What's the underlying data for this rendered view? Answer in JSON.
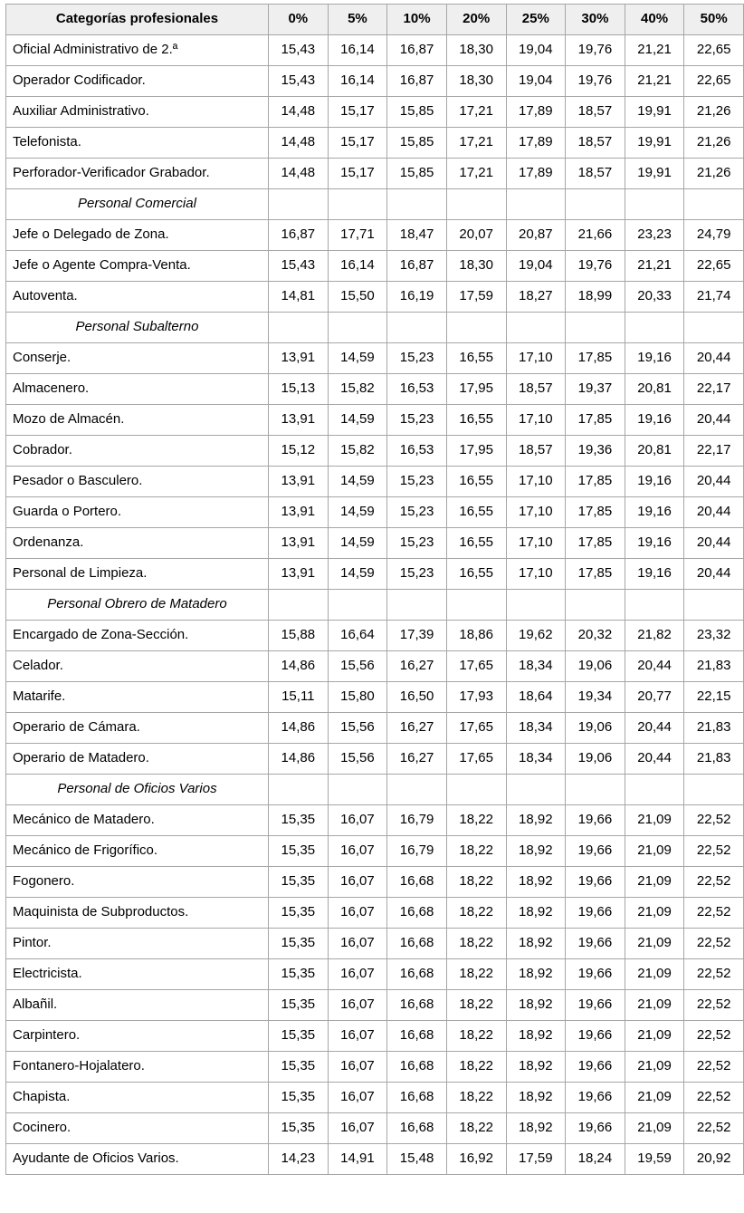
{
  "colors": {
    "header_background": "#efefef",
    "grid_border": "#a6a6a6",
    "text": "#000000",
    "page_background": "#ffffff"
  },
  "table": {
    "category_header": "Categorías profesionales",
    "columns": [
      "0%",
      "5%",
      "10%",
      "20%",
      "25%",
      "30%",
      "40%",
      "50%"
    ],
    "rows": [
      {
        "label": "Oficial Administrativo de 2.ª",
        "values": [
          "15,43",
          "16,14",
          "16,87",
          "18,30",
          "19,04",
          "19,76",
          "21,21",
          "22,65"
        ]
      },
      {
        "label": "Operador Codificador.",
        "values": [
          "15,43",
          "16,14",
          "16,87",
          "18,30",
          "19,04",
          "19,76",
          "21,21",
          "22,65"
        ]
      },
      {
        "label": "Auxiliar Administrativo.",
        "values": [
          "14,48",
          "15,17",
          "15,85",
          "17,21",
          "17,89",
          "18,57",
          "19,91",
          "21,26"
        ]
      },
      {
        "label": "Telefonista.",
        "values": [
          "14,48",
          "15,17",
          "15,85",
          "17,21",
          "17,89",
          "18,57",
          "19,91",
          "21,26"
        ]
      },
      {
        "label": "Perforador-Verificador Grabador.",
        "values": [
          "14,48",
          "15,17",
          "15,85",
          "17,21",
          "17,89",
          "18,57",
          "19,91",
          "21,26"
        ]
      },
      {
        "section": "Personal Comercial"
      },
      {
        "label": "Jefe o Delegado de Zona.",
        "values": [
          "16,87",
          "17,71",
          "18,47",
          "20,07",
          "20,87",
          "21,66",
          "23,23",
          "24,79"
        ]
      },
      {
        "label": "Jefe o Agente Compra-Venta.",
        "values": [
          "15,43",
          "16,14",
          "16,87",
          "18,30",
          "19,04",
          "19,76",
          "21,21",
          "22,65"
        ]
      },
      {
        "label": "Autoventa.",
        "values": [
          "14,81",
          "15,50",
          "16,19",
          "17,59",
          "18,27",
          "18,99",
          "20,33",
          "21,74"
        ]
      },
      {
        "section": "Personal Subalterno"
      },
      {
        "label": "Conserje.",
        "values": [
          "13,91",
          "14,59",
          "15,23",
          "16,55",
          "17,10",
          "17,85",
          "19,16",
          "20,44"
        ]
      },
      {
        "label": "Almacenero.",
        "values": [
          "15,13",
          "15,82",
          "16,53",
          "17,95",
          "18,57",
          "19,37",
          "20,81",
          "22,17"
        ]
      },
      {
        "label": "Mozo de Almacén.",
        "values": [
          "13,91",
          "14,59",
          "15,23",
          "16,55",
          "17,10",
          "17,85",
          "19,16",
          "20,44"
        ]
      },
      {
        "label": "Cobrador.",
        "values": [
          "15,12",
          "15,82",
          "16,53",
          "17,95",
          "18,57",
          "19,36",
          "20,81",
          "22,17"
        ]
      },
      {
        "label": "Pesador o Basculero.",
        "values": [
          "13,91",
          "14,59",
          "15,23",
          "16,55",
          "17,10",
          "17,85",
          "19,16",
          "20,44"
        ]
      },
      {
        "label": "Guarda o Portero.",
        "values": [
          "13,91",
          "14,59",
          "15,23",
          "16,55",
          "17,10",
          "17,85",
          "19,16",
          "20,44"
        ]
      },
      {
        "label": "Ordenanza.",
        "values": [
          "13,91",
          "14,59",
          "15,23",
          "16,55",
          "17,10",
          "17,85",
          "19,16",
          "20,44"
        ]
      },
      {
        "label": "Personal de Limpieza.",
        "values": [
          "13,91",
          "14,59",
          "15,23",
          "16,55",
          "17,10",
          "17,85",
          "19,16",
          "20,44"
        ]
      },
      {
        "section": "Personal Obrero de Matadero"
      },
      {
        "label": "Encargado de Zona-Sección.",
        "values": [
          "15,88",
          "16,64",
          "17,39",
          "18,86",
          "19,62",
          "20,32",
          "21,82",
          "23,32"
        ]
      },
      {
        "label": "Celador.",
        "values": [
          "14,86",
          "15,56",
          "16,27",
          "17,65",
          "18,34",
          "19,06",
          "20,44",
          "21,83"
        ]
      },
      {
        "label": "Matarife.",
        "values": [
          "15,11",
          "15,80",
          "16,50",
          "17,93",
          "18,64",
          "19,34",
          "20,77",
          "22,15"
        ]
      },
      {
        "label": "Operario de Cámara.",
        "values": [
          "14,86",
          "15,56",
          "16,27",
          "17,65",
          "18,34",
          "19,06",
          "20,44",
          "21,83"
        ]
      },
      {
        "label": "Operario de Matadero.",
        "values": [
          "14,86",
          "15,56",
          "16,27",
          "17,65",
          "18,34",
          "19,06",
          "20,44",
          "21,83"
        ]
      },
      {
        "section": "Personal de Oficios Varios"
      },
      {
        "label": "Mecánico de Matadero.",
        "values": [
          "15,35",
          "16,07",
          "16,79",
          "18,22",
          "18,92",
          "19,66",
          "21,09",
          "22,52"
        ]
      },
      {
        "label": "Mecánico de Frigorífico.",
        "values": [
          "15,35",
          "16,07",
          "16,79",
          "18,22",
          "18,92",
          "19,66",
          "21,09",
          "22,52"
        ]
      },
      {
        "label": "Fogonero.",
        "values": [
          "15,35",
          "16,07",
          "16,68",
          "18,22",
          "18,92",
          "19,66",
          "21,09",
          "22,52"
        ]
      },
      {
        "label": "Maquinista de Subproductos.",
        "values": [
          "15,35",
          "16,07",
          "16,68",
          "18,22",
          "18,92",
          "19,66",
          "21,09",
          "22,52"
        ]
      },
      {
        "label": "Pintor.",
        "values": [
          "15,35",
          "16,07",
          "16,68",
          "18,22",
          "18,92",
          "19,66",
          "21,09",
          "22,52"
        ]
      },
      {
        "label": "Electricista.",
        "values": [
          "15,35",
          "16,07",
          "16,68",
          "18,22",
          "18,92",
          "19,66",
          "21,09",
          "22,52"
        ]
      },
      {
        "label": "Albañil.",
        "values": [
          "15,35",
          "16,07",
          "16,68",
          "18,22",
          "18,92",
          "19,66",
          "21,09",
          "22,52"
        ]
      },
      {
        "label": "Carpintero.",
        "values": [
          "15,35",
          "16,07",
          "16,68",
          "18,22",
          "18,92",
          "19,66",
          "21,09",
          "22,52"
        ]
      },
      {
        "label": "Fontanero-Hojalatero.",
        "values": [
          "15,35",
          "16,07",
          "16,68",
          "18,22",
          "18,92",
          "19,66",
          "21,09",
          "22,52"
        ]
      },
      {
        "label": "Chapista.",
        "values": [
          "15,35",
          "16,07",
          "16,68",
          "18,22",
          "18,92",
          "19,66",
          "21,09",
          "22,52"
        ]
      },
      {
        "label": "Cocinero.",
        "values": [
          "15,35",
          "16,07",
          "16,68",
          "18,22",
          "18,92",
          "19,66",
          "21,09",
          "22,52"
        ]
      },
      {
        "label": "Ayudante de Oficios Varios.",
        "values": [
          "14,23",
          "14,91",
          "15,48",
          "16,92",
          "17,59",
          "18,24",
          "19,59",
          "20,92"
        ]
      }
    ]
  }
}
